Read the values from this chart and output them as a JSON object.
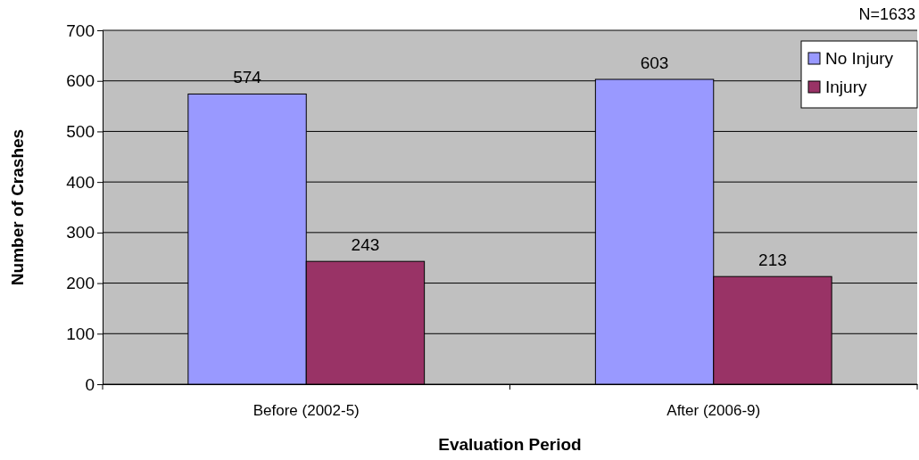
{
  "chart_data": {
    "type": "bar",
    "xlabel": "Evaluation Period",
    "ylabel": "Number of Crashes",
    "categories": [
      "Before (2002-5)",
      "After (2006-9)"
    ],
    "series": [
      {
        "name": "No Injury",
        "color": "#9999ff",
        "values": [
          574,
          603
        ]
      },
      {
        "name": "Injury",
        "color": "#993366",
        "values": [
          243,
          213
        ]
      }
    ],
    "ylim": [
      0,
      700
    ],
    "yticks": [
      0,
      100,
      200,
      300,
      400,
      500,
      600,
      700
    ],
    "grid": "y",
    "legend": "top right",
    "data_labels": true,
    "annotations": [
      "N=1633"
    ]
  }
}
